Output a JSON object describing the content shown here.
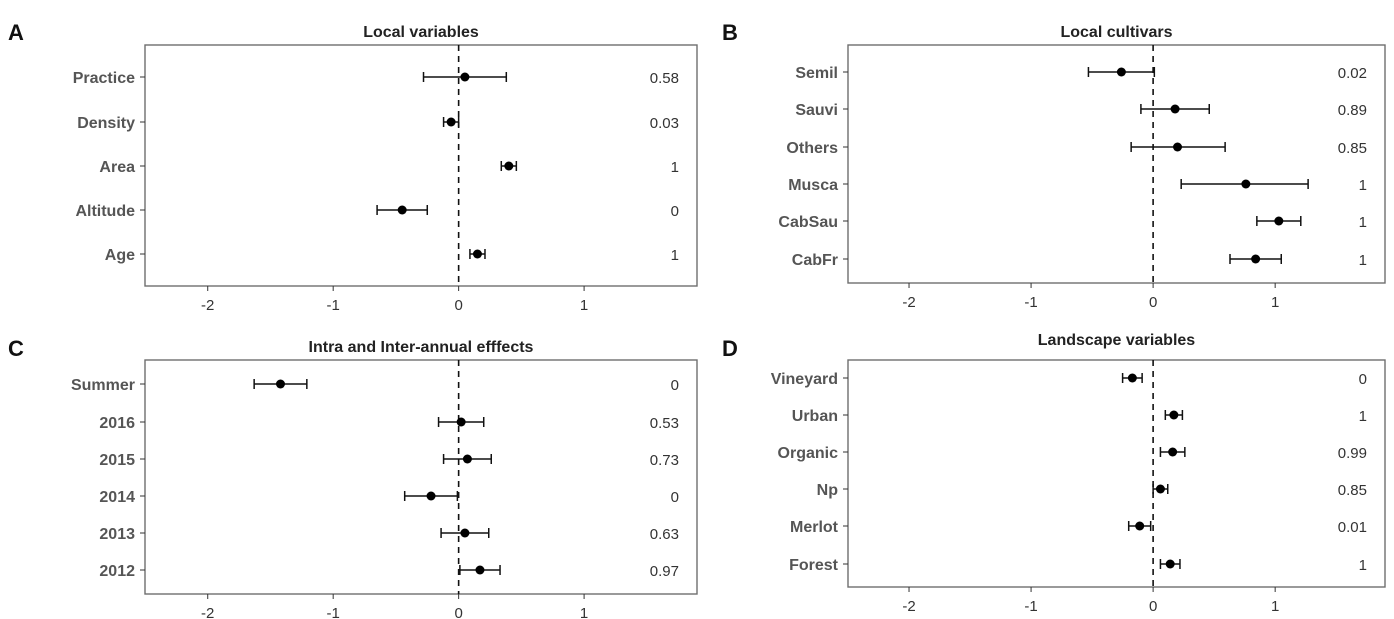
{
  "chart_data": [
    {
      "panel": "A",
      "type": "scatter",
      "subtype": "forest-plot",
      "title": "Local variables",
      "xlim": [
        -2.5,
        1.9
      ],
      "x_ticks": [
        -2,
        -1,
        0,
        1
      ],
      "x_tick_labels": [
        "-2",
        "-1",
        "0",
        "1"
      ],
      "reference_line_x": 0,
      "categories": [
        "Practice",
        "Density",
        "Area",
        "Altitude",
        "Age"
      ],
      "estimates": [
        0.05,
        -0.06,
        0.4,
        -0.45,
        0.15
      ],
      "ci_low": [
        -0.28,
        -0.12,
        0.34,
        -0.65,
        0.09
      ],
      "ci_high": [
        0.38,
        0.0,
        0.46,
        -0.25,
        0.21
      ],
      "right_values": [
        "0.58",
        "0.03",
        "1",
        "0",
        "1"
      ]
    },
    {
      "panel": "B",
      "type": "scatter",
      "subtype": "forest-plot",
      "title": "Local cultivars",
      "xlim": [
        -2.5,
        1.9
      ],
      "x_ticks": [
        -2,
        -1,
        0,
        1
      ],
      "x_tick_labels": [
        "-2",
        "-1",
        "0",
        "1"
      ],
      "reference_line_x": 0,
      "categories": [
        "Semil",
        "Sauvi",
        "Others",
        "Musca",
        "CabSau",
        "CabFr"
      ],
      "estimates": [
        -0.26,
        0.18,
        0.2,
        0.76,
        1.03,
        0.84
      ],
      "ci_low": [
        -0.53,
        -0.1,
        -0.18,
        0.23,
        0.85,
        0.63
      ],
      "ci_high": [
        0.01,
        0.46,
        0.59,
        1.27,
        1.21,
        1.05
      ],
      "right_values": [
        "0.02",
        "0.89",
        "0.85",
        "1",
        "1",
        "1"
      ]
    },
    {
      "panel": "C",
      "type": "scatter",
      "subtype": "forest-plot",
      "title": "Intra and Inter-annual efffects",
      "xlim": [
        -2.5,
        1.9
      ],
      "x_ticks": [
        -2,
        -1,
        0,
        1
      ],
      "x_tick_labels": [
        "-2",
        "-1",
        "0",
        "1"
      ],
      "reference_line_x": 0,
      "categories": [
        "Summer",
        "2016",
        "2015",
        "2014",
        "2013",
        "2012"
      ],
      "estimates": [
        -1.42,
        0.02,
        0.07,
        -0.22,
        0.05,
        0.17
      ],
      "ci_low": [
        -1.63,
        -0.16,
        -0.12,
        -0.43,
        -0.14,
        0.01
      ],
      "ci_high": [
        -1.21,
        0.2,
        0.26,
        -0.01,
        0.24,
        0.33
      ],
      "right_values": [
        "0",
        "0.53",
        "0.73",
        "0",
        "0.63",
        "0.97"
      ]
    },
    {
      "panel": "D",
      "type": "scatter",
      "subtype": "forest-plot",
      "title": "Landscape variables",
      "xlim": [
        -2.5,
        1.9
      ],
      "x_ticks": [
        -2,
        -1,
        0,
        1
      ],
      "x_tick_labels": [
        "-2",
        "-1",
        "0",
        "1"
      ],
      "reference_line_x": 0,
      "categories": [
        "Vineyard",
        "Urban",
        "Organic",
        "Np",
        "Merlot",
        "Forest"
      ],
      "estimates": [
        -0.17,
        0.17,
        0.16,
        0.06,
        -0.11,
        0.14
      ],
      "ci_low": [
        -0.25,
        0.1,
        0.06,
        0.0,
        -0.2,
        0.06
      ],
      "ci_high": [
        -0.09,
        0.24,
        0.26,
        0.12,
        -0.02,
        0.22
      ],
      "right_values": [
        "0",
        "1",
        "0.99",
        "0.85",
        "0.01",
        "1"
      ]
    }
  ]
}
